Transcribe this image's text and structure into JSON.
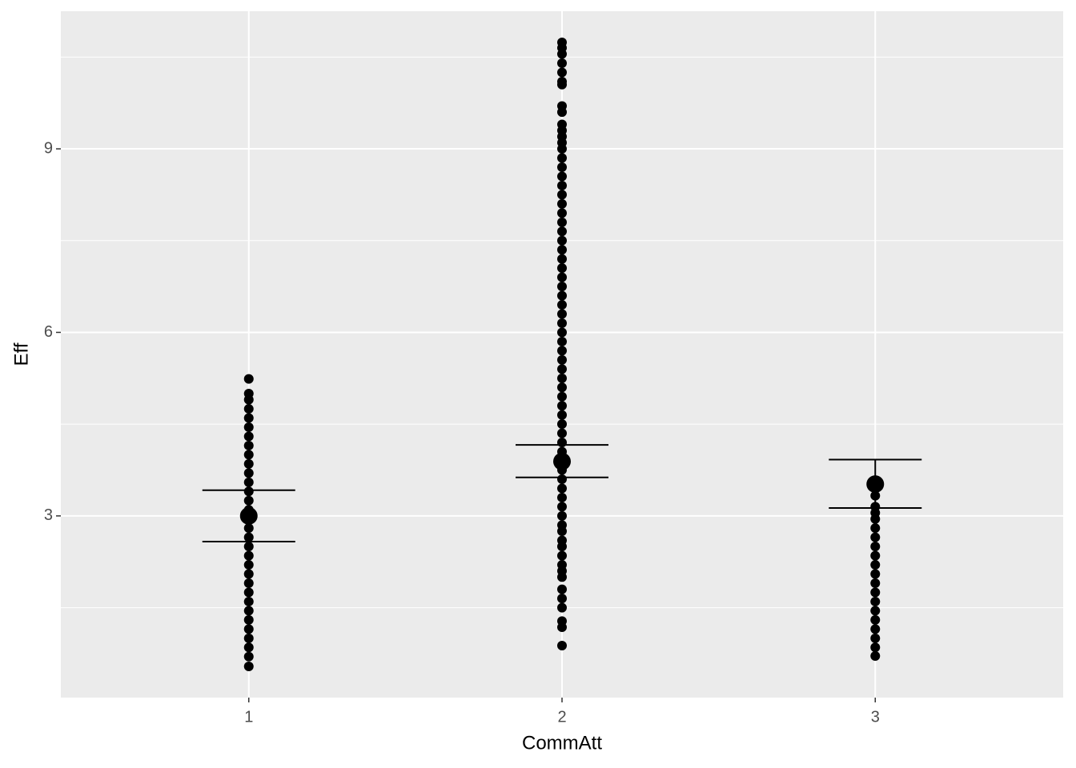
{
  "chart_data": {
    "type": "pointrange",
    "x_label": "CommAtt",
    "y_label": "Eff",
    "categories": [
      "1",
      "2",
      "3"
    ],
    "points": [
      [
        0.54,
        0.7,
        0.85,
        1.0,
        1.15,
        1.3,
        1.45,
        1.6,
        1.75,
        1.9,
        2.05,
        2.2,
        2.35,
        2.5,
        2.65,
        2.8,
        2.95,
        3.1,
        3.25,
        3.4,
        3.55,
        3.7,
        3.85,
        4.0,
        4.15,
        4.3,
        4.45,
        4.6,
        4.75,
        4.9,
        5.0,
        5.24
      ],
      [
        0.88,
        1.18,
        1.28,
        1.5,
        1.65,
        1.8,
        2.0,
        2.1,
        2.2,
        2.35,
        2.5,
        2.6,
        2.75,
        2.85,
        3.0,
        3.15,
        3.3,
        3.45,
        3.6,
        3.75,
        3.9,
        4.05,
        4.2,
        4.35,
        4.5,
        4.65,
        4.8,
        4.95,
        5.1,
        5.25,
        5.4,
        5.55,
        5.7,
        5.85,
        6.0,
        6.15,
        6.3,
        6.45,
        6.6,
        6.75,
        6.9,
        7.05,
        7.2,
        7.35,
        7.5,
        7.65,
        7.8,
        7.95,
        8.1,
        8.25,
        8.4,
        8.55,
        8.7,
        8.85,
        9.0,
        9.1,
        9.2,
        9.3,
        9.4,
        9.6,
        9.7,
        10.05,
        10.1,
        10.25,
        10.4,
        10.55,
        10.65,
        10.74
      ],
      [
        0.71,
        0.85,
        1.0,
        1.15,
        1.3,
        1.45,
        1.6,
        1.75,
        1.9,
        2.05,
        2.2,
        2.35,
        2.5,
        2.65,
        2.8,
        2.95,
        3.05,
        3.15,
        3.33
      ]
    ],
    "means": [
      3.0,
      3.89,
      3.52
    ],
    "lower": [
      2.58,
      3.63,
      3.13
    ],
    "upper": [
      3.42,
      4.16,
      3.92
    ],
    "color": "#000000",
    "ylim": [
      0.03,
      11.25
    ],
    "yticks": [
      3,
      6,
      9
    ],
    "yminor": [
      1.5,
      4.5,
      7.5,
      10.5
    ],
    "grid": true
  }
}
